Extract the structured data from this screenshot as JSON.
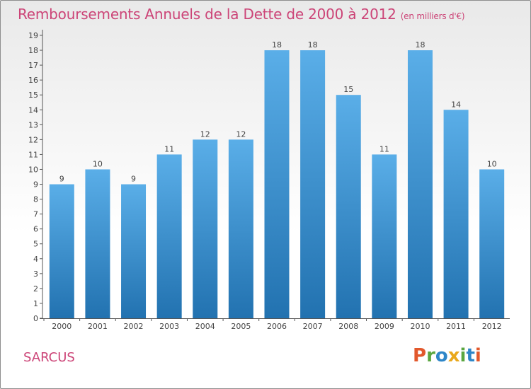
{
  "title": "Remboursements Annuels de la Dette de 2000 à 2012",
  "unit": "(en milliers d'€)",
  "town": "SARCUS",
  "logo": {
    "text": "Proxiti",
    "letters": [
      {
        "ch": "P",
        "color": "#e2582c"
      },
      {
        "ch": "r",
        "color": "#5aa640"
      },
      {
        "ch": "o",
        "color": "#2e86c8"
      },
      {
        "ch": "x",
        "color": "#e9a81c"
      },
      {
        "ch": "i",
        "color": "#5aa640"
      },
      {
        "ch": "t",
        "color": "#2e86c8"
      },
      {
        "ch": "i",
        "color": "#e2582c"
      }
    ]
  },
  "colors": {
    "bar_top": "#5aaee8",
    "bar_bottom": "#2272b0",
    "title": "#cc4477",
    "axis": "#555555"
  },
  "chart_data": {
    "type": "bar",
    "title": "Remboursements Annuels de la Dette de 2000 à 2012",
    "subtitle": "(en milliers d'€)",
    "categories": [
      "2000",
      "2001",
      "2002",
      "2003",
      "2004",
      "2005",
      "2006",
      "2007",
      "2008",
      "2009",
      "2010",
      "2011",
      "2012"
    ],
    "values": [
      9,
      10,
      9,
      11,
      12,
      12,
      18,
      18,
      15,
      11,
      18,
      14,
      10
    ],
    "ylim": [
      0,
      19
    ],
    "yticks": [
      0,
      1,
      2,
      3,
      4,
      5,
      6,
      7,
      8,
      9,
      10,
      11,
      12,
      13,
      14,
      15,
      16,
      17,
      18,
      19
    ],
    "grid": false,
    "legend": "none"
  }
}
